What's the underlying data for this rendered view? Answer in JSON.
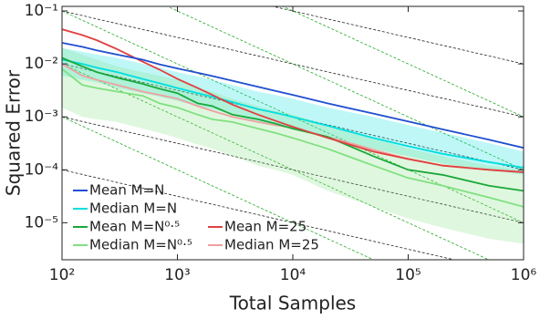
{
  "chart_data": {
    "type": "line",
    "xlabel": "Total Samples",
    "ylabel": "Squared Error",
    "xscale": "log",
    "yscale": "log",
    "xlim": [
      100,
      1000000
    ],
    "ylim": [
      2e-06,
      0.122
    ],
    "xticks": [
      {
        "value": 100,
        "label": "10²"
      },
      {
        "value": 1000,
        "label": "10³"
      },
      {
        "value": 10000,
        "label": "10⁴"
      },
      {
        "value": 100000,
        "label": "10⁵"
      },
      {
        "value": 1000000,
        "label": "10⁶"
      }
    ],
    "yticks": [
      {
        "value": 1e-05,
        "label": "10⁻⁵"
      },
      {
        "value": 0.0001,
        "label": "10⁻⁴"
      },
      {
        "value": 0.001,
        "label": "10⁻³"
      },
      {
        "value": 0.01,
        "label": "10⁻²"
      },
      {
        "value": 0.1,
        "label": "10⁻¹"
      }
    ],
    "legend": "lower left",
    "x": [
      100,
      150,
      200,
      300,
      500,
      700,
      1000,
      1500,
      2000,
      3000,
      5000,
      7000,
      10000,
      20000,
      50000,
      100000,
      200000,
      500000,
      1000000
    ],
    "reference_lines": [
      {
        "color": "#222222",
        "points": [
          [
            100,
            1
          ],
          [
            1000000,
            0.01
          ]
        ]
      },
      {
        "color": "#222222",
        "points": [
          [
            100,
            0.1
          ],
          [
            1000000,
            0.001
          ]
        ]
      },
      {
        "color": "#222222",
        "points": [
          [
            100,
            0.01
          ],
          [
            1000000,
            0.0001
          ]
        ]
      },
      {
        "color": "#222222",
        "points": [
          [
            100,
            0.001
          ],
          [
            1000000,
            1e-05
          ]
        ]
      },
      {
        "color": "#222222",
        "points": [
          [
            100,
            0.0001
          ],
          [
            1000000,
            1e-06
          ]
        ]
      },
      {
        "color": "#22aa22",
        "points": [
          [
            100,
            10
          ],
          [
            1000000,
            0.001
          ]
        ]
      },
      {
        "color": "#22aa22",
        "points": [
          [
            100,
            1
          ],
          [
            1000000,
            0.0001
          ]
        ]
      },
      {
        "color": "#22aa22",
        "points": [
          [
            100,
            0.1
          ],
          [
            1000000,
            1e-05
          ]
        ]
      },
      {
        "color": "#22aa22",
        "points": [
          [
            100,
            0.01
          ],
          [
            1000000,
            1e-06
          ]
        ]
      },
      {
        "color": "#22aa22",
        "points": [
          [
            100,
            0.001
          ],
          [
            1000000,
            1e-07
          ]
        ]
      }
    ],
    "series": [
      {
        "name": "Mean M=N",
        "color": "#1f4fd0",
        "values": [
          0.025,
          0.021,
          0.018,
          0.015,
          0.012,
          0.0098,
          0.0082,
          0.0068,
          0.0059,
          0.0048,
          0.0037,
          0.0031,
          0.0026,
          0.0018,
          0.00115,
          0.00082,
          0.00058,
          0.00037,
          0.00026
        ]
      },
      {
        "name": "Median M=N",
        "color": "#00dede",
        "values": [
          0.012,
          0.01,
          0.0085,
          0.007,
          0.0052,
          0.0043,
          0.0035,
          0.0028,
          0.0024,
          0.0019,
          0.0014,
          0.0012,
          0.001,
          0.00068,
          0.0004,
          0.00028,
          0.0002,
          0.00014,
          0.00011
        ],
        "band": {
          "lower": [
            0.006,
            0.005,
            0.0045,
            0.0035,
            0.0028,
            0.0024,
            0.002,
            0.0016,
            0.0014,
            0.0011,
            0.0008,
            0.0007,
            0.0006,
            0.0004,
            0.00025,
            0.00018,
            0.00013,
            0.0001,
            8e-05
          ],
          "upper": [
            0.02,
            0.017,
            0.015,
            0.013,
            0.01,
            0.0085,
            0.007,
            0.0058,
            0.005,
            0.004,
            0.003,
            0.0026,
            0.0022,
            0.0015,
            0.001,
            0.0007,
            0.0005,
            0.00032,
            0.00022
          ]
        }
      },
      {
        "name": "Mean M=N⁰·⁵",
        "color": "#1aa83a",
        "values": [
          0.013,
          0.009,
          0.007,
          0.0055,
          0.0042,
          0.0034,
          0.0028,
          0.0018,
          0.0016,
          0.0011,
          0.0009,
          0.00075,
          0.0006,
          0.00042,
          0.00018,
          0.0001,
          8e-05,
          5e-05,
          4e-05
        ]
      },
      {
        "name": "Median M=N⁰·⁵",
        "color": "#80e080",
        "values": [
          0.008,
          0.004,
          0.0035,
          0.003,
          0.0025,
          0.0018,
          0.0015,
          0.0011,
          0.0009,
          0.0008,
          0.0006,
          0.0005,
          0.0004,
          0.00025,
          0.00012,
          7e-05,
          5e-05,
          3e-05,
          2e-05
        ],
        "band": {
          "lower": [
            0.0015,
            0.001,
            0.0009,
            0.0008,
            0.0006,
            0.0005,
            0.0004,
            0.0003,
            0.00025,
            0.00018,
            0.00012,
            0.0001,
            8e-05,
            4e-05,
            2e-05,
            1.2e-05,
            8e-06,
            5e-06,
            4e-06
          ],
          "upper": [
            0.02,
            0.015,
            0.012,
            0.009,
            0.007,
            0.006,
            0.005,
            0.0035,
            0.003,
            0.0022,
            0.0016,
            0.0013,
            0.0011,
            0.0007,
            0.0004,
            0.00025,
            0.00018,
            0.00012,
            0.0001
          ]
        }
      },
      {
        "name": "Mean M=25",
        "color": "#e04040",
        "values": [
          0.045,
          0.035,
          0.028,
          0.019,
          0.011,
          0.0078,
          0.0052,
          0.0035,
          0.0026,
          0.0017,
          0.0011,
          0.00085,
          0.00065,
          0.0004,
          0.00022,
          0.00016,
          0.00012,
          0.0001,
          9e-05
        ]
      },
      {
        "name": "Median M=25",
        "color": "#f0a0a0",
        "values": [
          0.01,
          0.006,
          0.005,
          0.004,
          0.003,
          0.0026,
          0.0022,
          0.0016,
          0.0013,
          0.001,
          0.0008,
          0.0007,
          0.00062,
          0.00042,
          0.00024,
          0.00016,
          0.00012,
          0.0001,
          9e-05
        ]
      }
    ]
  }
}
